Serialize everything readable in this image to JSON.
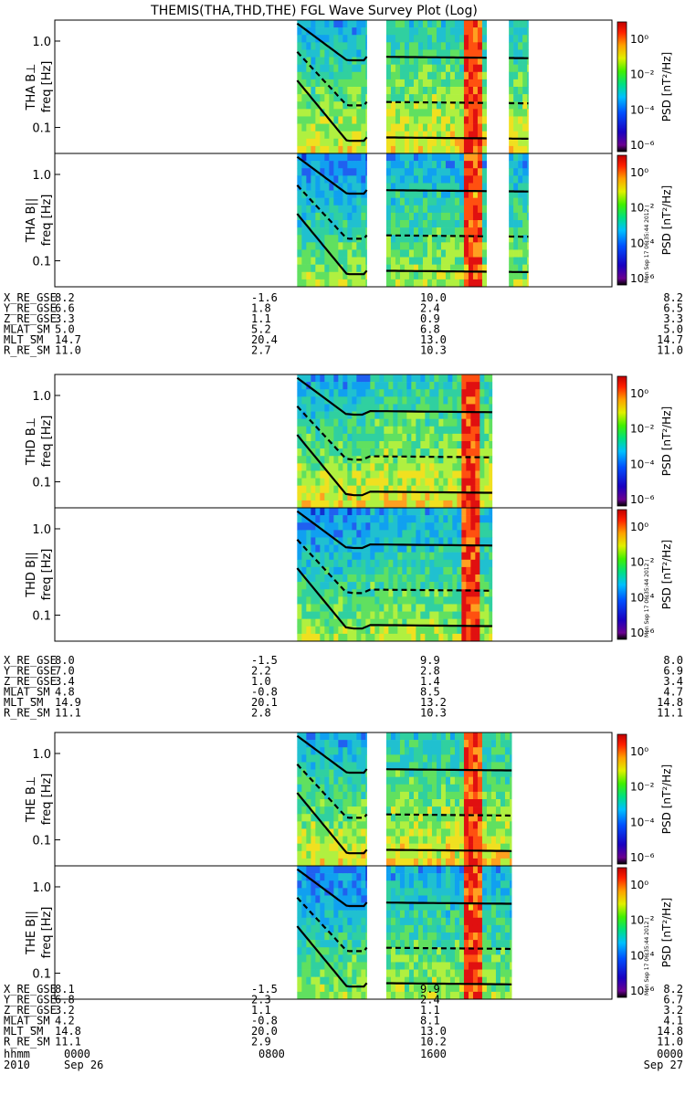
{
  "title": "THEMIS(THA,THD,THE) FGL Wave Survey Plot (Log)",
  "colorbar": {
    "label": "PSD [nT²/Hz]",
    "ticks": [
      "10⁰",
      "10⁻²",
      "10⁻⁴",
      "10⁻⁶"
    ],
    "stamp": "Mon Sep 17 06:35:44 2012"
  },
  "chart_data": {
    "type": "heatmap",
    "x_axis": {
      "labels": [
        "hhmm",
        "2010"
      ],
      "ticks": [
        [
          "0000",
          "Sep 26"
        ],
        [
          "0800",
          ""
        ],
        [
          "1600",
          ""
        ],
        [
          "0000",
          "Sep 27"
        ]
      ]
    },
    "y_axis": {
      "scale": "log",
      "ticks": [
        "1.0",
        "0.1"
      ],
      "unit": "freq [Hz]"
    },
    "panels": [
      {
        "name": "THA B⊥",
        "ylabel": "freq [Hz]",
        "data_segments": [
          [
            0.435,
            0.56
          ],
          [
            0.595,
            0.775
          ],
          [
            0.815,
            0.85
          ]
        ],
        "intense_band": [
          0.73,
          0.76
        ]
      },
      {
        "name": "THA B||",
        "ylabel": "freq [Hz]",
        "data_segments": [
          [
            0.435,
            0.56
          ],
          [
            0.595,
            0.775
          ],
          [
            0.815,
            0.85
          ]
        ],
        "intense_band": [
          0.73,
          0.76
        ]
      },
      {
        "name": "THD B⊥",
        "ylabel": "freq [Hz]",
        "data_segments": [
          [
            0.435,
            0.785
          ]
        ],
        "intense_band": [
          0.73,
          0.76
        ]
      },
      {
        "name": "THD B||",
        "ylabel": "freq [Hz]",
        "data_segments": [
          [
            0.435,
            0.785
          ]
        ],
        "intense_band": [
          0.73,
          0.76
        ]
      },
      {
        "name": "THE B⊥",
        "ylabel": "freq [Hz]",
        "data_segments": [
          [
            0.435,
            0.56
          ],
          [
            0.595,
            0.82
          ]
        ],
        "intense_band": [
          0.73,
          0.76
        ]
      },
      {
        "name": "THE B||",
        "ylabel": "freq [Hz]",
        "data_segments": [
          [
            0.435,
            0.56
          ],
          [
            0.595,
            0.82
          ]
        ],
        "intense_band": [
          0.73,
          0.76
        ]
      }
    ],
    "ephemeris": [
      {
        "rows": [
          {
            "label": "X_RE_GSE",
            "values": [
              "8.2",
              "-1.6",
              "10.0",
              "8.2"
            ]
          },
          {
            "label": "Y_RE_GSE",
            "values": [
              "6.6",
              "1.8",
              "2.4",
              "6.5"
            ]
          },
          {
            "label": "Z_RE_GSE",
            "values": [
              "3.3",
              "1.1",
              "0.9",
              "3.3"
            ]
          },
          {
            "label": "MLAT_SM",
            "values": [
              "5.0",
              "5.2",
              "6.8",
              "5.0"
            ]
          },
          {
            "label": "MLT_SM",
            "values": [
              "14.7",
              "20.4",
              "13.0",
              "14.7"
            ]
          },
          {
            "label": "R_RE_SM",
            "values": [
              "11.0",
              "2.7",
              "10.3",
              "11.0"
            ]
          }
        ]
      },
      {
        "rows": [
          {
            "label": "X_RE_GSE",
            "values": [
              "8.0",
              "-1.5",
              "9.9",
              "8.0"
            ]
          },
          {
            "label": "Y_RE_GSE",
            "values": [
              "7.0",
              "2.2",
              "2.8",
              "6.9"
            ]
          },
          {
            "label": "Z_RE_GSE",
            "values": [
              "3.4",
              "1.0",
              "1.4",
              "3.4"
            ]
          },
          {
            "label": "MLAT_SM",
            "values": [
              "4.8",
              "-0.8",
              "8.5",
              "4.7"
            ]
          },
          {
            "label": "MLT_SM",
            "values": [
              "14.9",
              "20.1",
              "13.2",
              "14.8"
            ]
          },
          {
            "label": "R_RE_SM",
            "values": [
              "11.1",
              "2.8",
              "10.3",
              "11.1"
            ]
          }
        ]
      },
      {
        "rows": [
          {
            "label": "X_RE_GSE",
            "values": [
              "8.1",
              "-1.5",
              "9.9",
              "8.2"
            ]
          },
          {
            "label": "Y_RE_GSE",
            "values": [
              "6.8",
              "2.3",
              "2.4",
              "6.7"
            ]
          },
          {
            "label": "Z_RE_GSE",
            "values": [
              "3.2",
              "1.1",
              "1.1",
              "3.2"
            ]
          },
          {
            "label": "MLAT_SM",
            "values": [
              "4.2",
              "-0.8",
              "8.1",
              "4.1"
            ]
          },
          {
            "label": "MLT_SM",
            "values": [
              "14.8",
              "20.0",
              "13.0",
              "14.8"
            ]
          },
          {
            "label": "R_RE_SM",
            "values": [
              "11.1",
              "2.9",
              "10.2",
              "11.0"
            ]
          }
        ]
      }
    ]
  }
}
